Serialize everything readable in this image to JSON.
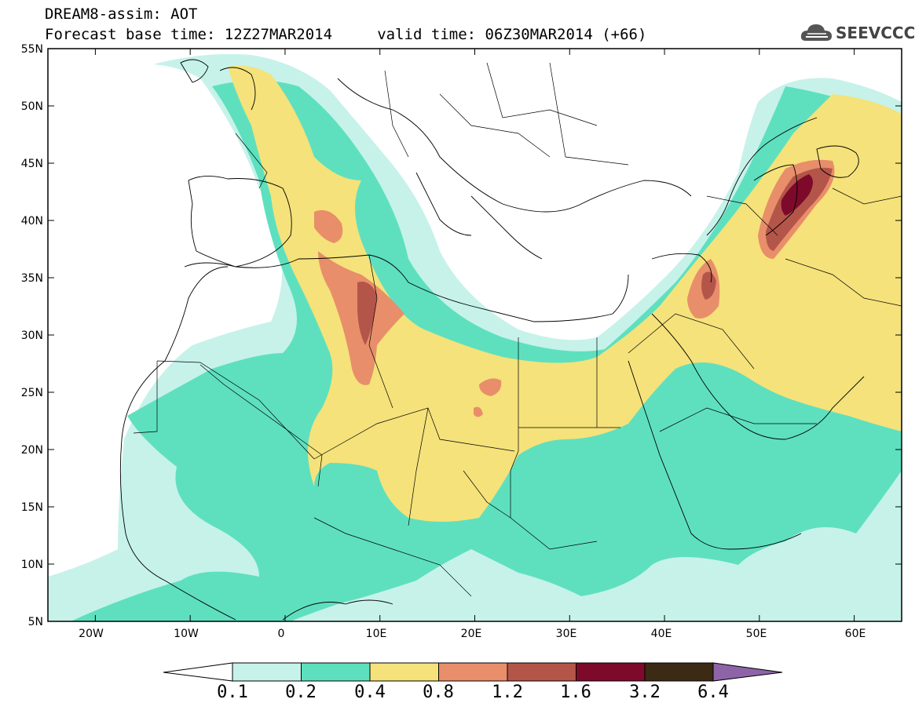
{
  "header": {
    "line1": "DREAM8-assim: AOT",
    "line2": "Forecast base time: 12Z27MAR2014     valid time: 06Z30MAR2014 (+66)"
  },
  "logo": {
    "text": "SEEVCCC",
    "icon": "cloud-icon"
  },
  "map": {
    "lon_range": [
      -25,
      65
    ],
    "lat_range": [
      5,
      55
    ],
    "lat_labels": [
      "55N",
      "50N",
      "45N",
      "40N",
      "35N",
      "30N",
      "25N",
      "20N",
      "15N",
      "10N",
      "5N"
    ],
    "lon_labels": [
      "20W",
      "10W",
      "0",
      "10E",
      "20E",
      "30E",
      "40E",
      "50E",
      "60E"
    ]
  },
  "legend": {
    "labels": [
      "0.1",
      "0.2",
      "0.4",
      "0.8",
      "1.2",
      "1.6",
      "3.2",
      "6.4"
    ],
    "colors": [
      "#ffffff",
      "#c6f2ea",
      "#5ee0bf",
      "#f5e27a",
      "#e88e6a",
      "#b4554a",
      "#7d0a2a",
      "#3b2a14",
      "#8e64a8"
    ]
  }
}
